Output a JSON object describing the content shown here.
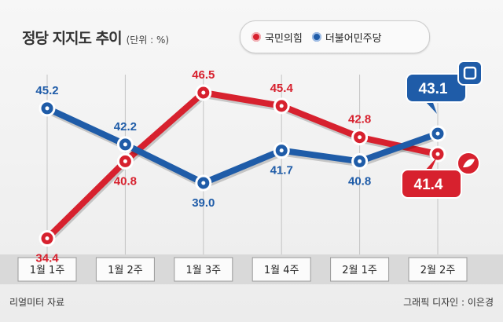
{
  "title": "정당 지지도 추이",
  "unit": "(단위 : %)",
  "source": "리얼미터 자료",
  "credit": "그래픽 디자인 : 이은경",
  "colors": {
    "red": "#d7212e",
    "blue": "#1f5ca8"
  },
  "chart_data": {
    "type": "line",
    "categories": [
      "1월 1주",
      "1월 2주",
      "1월 3주",
      "1월 4주",
      "2월 1주",
      "2월 2주"
    ],
    "series": [
      {
        "name": "국민의힘",
        "values": [
          34.4,
          40.8,
          46.5,
          45.4,
          42.8,
          41.4
        ]
      },
      {
        "name": "더불어민주당",
        "values": [
          45.2,
          42.2,
          39.0,
          41.7,
          40.8,
          43.1
        ]
      }
    ],
    "ylim": [
      33,
      48
    ],
    "legend": "top-right",
    "grid": false
  }
}
